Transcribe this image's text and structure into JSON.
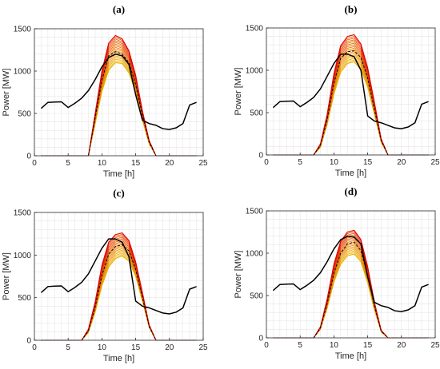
{
  "chart_data": [
    {
      "type": "line",
      "title": "(a)",
      "xlabel": "Time [h]",
      "ylabel": "Power [MW]",
      "xlim": [
        0,
        25
      ],
      "ylim": [
        0,
        1500
      ],
      "xticks": [
        0,
        5,
        10,
        15,
        20,
        25
      ],
      "yticks": [
        0,
        500,
        1000,
        1500
      ],
      "grid": true,
      "x": [
        1,
        2,
        3,
        4,
        5,
        6,
        7,
        8,
        9,
        10,
        11,
        12,
        13,
        14,
        15,
        16,
        17,
        18,
        19,
        20,
        21,
        22,
        23,
        24
      ],
      "series": [
        {
          "role": "load",
          "color": "#000000",
          "style": "solid",
          "values": [
            560,
            630,
            635,
            637,
            570,
            620,
            680,
            770,
            900,
            1050,
            1160,
            1200,
            1180,
            1080,
            720,
            420,
            380,
            360,
            320,
            310,
            330,
            380,
            600,
            630
          ]
        },
        {
          "role": "pv-lower",
          "color": "#e8b000",
          "style": "solid",
          "values": [
            0,
            0,
            0,
            0,
            0,
            0,
            0,
            0,
            380,
            760,
            1010,
            1100,
            1090,
            980,
            750,
            420,
            140,
            0,
            0,
            0,
            0,
            0,
            0,
            0
          ]
        },
        {
          "role": "pv-upper",
          "color": "#e00000",
          "style": "solid",
          "values": [
            0,
            0,
            0,
            0,
            0,
            0,
            0,
            0,
            500,
            1000,
            1330,
            1420,
            1380,
            1240,
            950,
            530,
            180,
            0,
            0,
            0,
            0,
            0,
            0,
            0
          ]
        },
        {
          "role": "pv-mean",
          "color": "#000000",
          "style": "dashed",
          "values": [
            0,
            0,
            0,
            0,
            0,
            0,
            0,
            0,
            450,
            890,
            1180,
            1230,
            1200,
            1100,
            840,
            480,
            160,
            0,
            0,
            0,
            0,
            0,
            0,
            0
          ]
        }
      ]
    },
    {
      "type": "line",
      "title": "(b)",
      "xlabel": "Time [h]",
      "ylabel": "Power [MW]",
      "xlim": [
        0,
        25
      ],
      "ylim": [
        0,
        1500
      ],
      "xticks": [
        0,
        5,
        10,
        15,
        20,
        25
      ],
      "yticks": [
        0,
        500,
        1000,
        1500
      ],
      "grid": true,
      "x": [
        1,
        2,
        3,
        4,
        5,
        6,
        7,
        8,
        9,
        10,
        11,
        12,
        13,
        14,
        15,
        16,
        17,
        18,
        19,
        20,
        21,
        22,
        23,
        24
      ],
      "series": [
        {
          "role": "load",
          "color": "#000000",
          "style": "solid",
          "values": [
            560,
            630,
            635,
            637,
            570,
            620,
            680,
            780,
            930,
            1080,
            1190,
            1190,
            1160,
            1000,
            460,
            400,
            380,
            350,
            320,
            310,
            330,
            380,
            600,
            630
          ]
        },
        {
          "role": "pv-lower",
          "color": "#e8b000",
          "style": "solid",
          "values": [
            0,
            0,
            0,
            0,
            0,
            0,
            0,
            90,
            360,
            720,
            980,
            1080,
            1100,
            1010,
            800,
            480,
            150,
            0,
            0,
            0,
            0,
            0,
            0,
            0
          ]
        },
        {
          "role": "pv-upper",
          "color": "#e00000",
          "style": "solid",
          "values": [
            0,
            0,
            0,
            0,
            0,
            0,
            0,
            130,
            480,
            960,
            1290,
            1400,
            1420,
            1310,
            1030,
            620,
            190,
            0,
            0,
            0,
            0,
            0,
            0,
            0
          ]
        },
        {
          "role": "pv-mean",
          "color": "#000000",
          "style": "dashed",
          "values": [
            0,
            0,
            0,
            0,
            0,
            0,
            0,
            110,
            420,
            850,
            1140,
            1220,
            1230,
            1150,
            910,
            540,
            170,
            0,
            0,
            0,
            0,
            0,
            0,
            0
          ]
        }
      ]
    },
    {
      "type": "line",
      "title": "(c)",
      "xlabel": "Time [h]",
      "ylabel": "Power [MW]",
      "xlim": [
        0,
        25
      ],
      "ylim": [
        0,
        1500
      ],
      "xticks": [
        0,
        5,
        10,
        15,
        20,
        25
      ],
      "yticks": [
        0,
        500,
        1000,
        1500
      ],
      "grid": true,
      "x": [
        1,
        2,
        3,
        4,
        5,
        6,
        7,
        8,
        9,
        10,
        11,
        12,
        13,
        14,
        15,
        16,
        17,
        18,
        19,
        20,
        21,
        22,
        23,
        24
      ],
      "series": [
        {
          "role": "load",
          "color": "#000000",
          "style": "solid",
          "values": [
            560,
            630,
            635,
            637,
            570,
            620,
            680,
            780,
            930,
            1080,
            1190,
            1190,
            1150,
            980,
            460,
            400,
            380,
            350,
            320,
            310,
            330,
            380,
            600,
            630
          ]
        },
        {
          "role": "pv-lower",
          "color": "#e8b000",
          "style": "solid",
          "values": [
            0,
            0,
            0,
            0,
            0,
            0,
            0,
            90,
            330,
            640,
            860,
            960,
            990,
            930,
            750,
            460,
            150,
            0,
            0,
            0,
            0,
            0,
            0,
            0
          ]
        },
        {
          "role": "pv-upper",
          "color": "#e00000",
          "style": "solid",
          "values": [
            0,
            0,
            0,
            0,
            0,
            0,
            0,
            130,
            450,
            880,
            1150,
            1240,
            1260,
            1170,
            920,
            560,
            180,
            0,
            0,
            0,
            0,
            0,
            0,
            0
          ]
        },
        {
          "role": "pv-mean",
          "color": "#000000",
          "style": "dashed",
          "values": [
            0,
            0,
            0,
            0,
            0,
            0,
            0,
            110,
            390,
            760,
            1010,
            1100,
            1120,
            1050,
            830,
            500,
            160,
            0,
            0,
            0,
            0,
            0,
            0,
            0
          ]
        }
      ]
    },
    {
      "type": "line",
      "title": "(d)",
      "xlabel": "Time [h]",
      "ylabel": "Power [MW]",
      "xlim": [
        0,
        25
      ],
      "ylim": [
        0,
        1500
      ],
      "xticks": [
        0,
        5,
        10,
        15,
        20,
        25
      ],
      "yticks": [
        0,
        500,
        1000,
        1500
      ],
      "grid": true,
      "x": [
        1,
        2,
        3,
        4,
        5,
        6,
        7,
        8,
        9,
        10,
        11,
        12,
        13,
        14,
        15,
        16,
        17,
        18,
        19,
        20,
        21,
        22,
        23,
        24
      ],
      "series": [
        {
          "role": "load",
          "color": "#000000",
          "style": "solid",
          "values": [
            560,
            630,
            635,
            637,
            570,
            620,
            680,
            770,
            900,
            1050,
            1160,
            1200,
            1190,
            1110,
            720,
            420,
            380,
            360,
            320,
            310,
            330,
            380,
            600,
            630
          ]
        },
        {
          "role": "pv-lower",
          "color": "#e8b000",
          "style": "solid",
          "values": [
            0,
            0,
            0,
            0,
            0,
            0,
            0,
            100,
            350,
            660,
            870,
            970,
            990,
            900,
            650,
            330,
            70,
            0,
            0,
            0,
            0,
            0,
            0,
            0
          ]
        },
        {
          "role": "pv-upper",
          "color": "#e00000",
          "style": "solid",
          "values": [
            0,
            0,
            0,
            0,
            0,
            0,
            0,
            130,
            460,
            870,
            1140,
            1250,
            1270,
            1160,
            840,
            420,
            90,
            0,
            0,
            0,
            0,
            0,
            0,
            0
          ]
        },
        {
          "role": "pv-mean",
          "color": "#000000",
          "style": "dashed",
          "values": [
            0,
            0,
            0,
            0,
            0,
            0,
            0,
            115,
            405,
            765,
            1000,
            1110,
            1130,
            1030,
            745,
            375,
            80,
            0,
            0,
            0,
            0,
            0,
            0,
            0
          ]
        }
      ]
    }
  ]
}
